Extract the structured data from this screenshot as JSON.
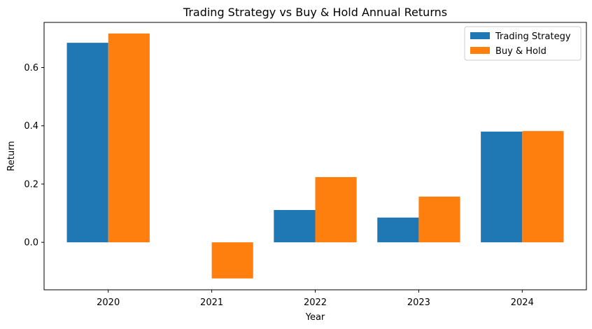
{
  "chart_data": {
    "type": "bar",
    "title": "Trading Strategy vs Buy & Hold Annual Returns",
    "xlabel": "Year",
    "ylabel": "Return",
    "categories": [
      "2020",
      "2021",
      "2022",
      "2023",
      "2024"
    ],
    "series": [
      {
        "name": "Trading Strategy",
        "color": "#1f77b4",
        "values": [
          0.685,
          0.0,
          0.111,
          0.085,
          0.38
        ]
      },
      {
        "name": "Buy & Hold",
        "color": "#ff7f0e",
        "values": [
          0.717,
          -0.124,
          0.224,
          0.157,
          0.382
        ]
      }
    ],
    "ylim": [
      -0.163,
      0.755
    ],
    "yticks": [
      "0.0",
      "0.2",
      "0.4",
      "0.6"
    ],
    "grid": false,
    "legend_position": "top-right"
  }
}
